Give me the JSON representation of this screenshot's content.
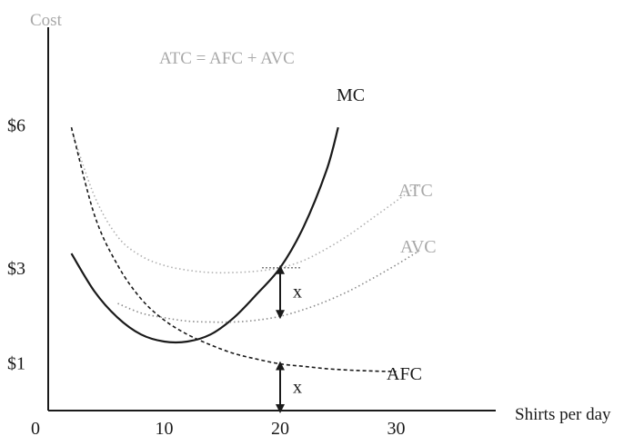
{
  "chart_data": {
    "type": "line",
    "title": "ATC = AFC + AVC",
    "ylabel": "Cost",
    "xlabel": "Shirts per day",
    "origin_label": "0",
    "x_ticks": [
      10,
      20,
      30
    ],
    "y_ticks": [
      {
        "value": 1,
        "label": "$1"
      },
      {
        "value": 3,
        "label": "$3"
      },
      {
        "value": 6,
        "label": "$6"
      }
    ],
    "xlim": [
      0,
      40
    ],
    "ylim": [
      0,
      7
    ],
    "series": [
      {
        "name": "MC",
        "style": "solid",
        "color": "#1a1a1a",
        "x": [
          2,
          4,
          6,
          8,
          10,
          12,
          14,
          16,
          18,
          20,
          22,
          24,
          25
        ],
        "y": [
          3.3,
          2.5,
          1.95,
          1.6,
          1.45,
          1.45,
          1.6,
          1.95,
          2.45,
          3.0,
          3.85,
          5.05,
          5.95
        ]
      },
      {
        "name": "ATC",
        "style": "dotted",
        "color": "#b0b0b0",
        "x": [
          2,
          4,
          6,
          8,
          10,
          12,
          14,
          16,
          18,
          20,
          22,
          24,
          26,
          28,
          30,
          32
        ],
        "y": [
          5.9,
          4.5,
          3.65,
          3.25,
          3.05,
          2.95,
          2.9,
          2.9,
          2.93,
          3.0,
          3.15,
          3.4,
          3.7,
          4.05,
          4.4,
          4.75
        ]
      },
      {
        "name": "AVC",
        "style": "dotted",
        "color": "#8a8a8a",
        "x": [
          6,
          8,
          10,
          12,
          14,
          16,
          18,
          20,
          22,
          24,
          26,
          28,
          30,
          32
        ],
        "y": [
          2.25,
          2.05,
          1.95,
          1.88,
          1.86,
          1.86,
          1.9,
          1.98,
          2.12,
          2.3,
          2.52,
          2.78,
          3.06,
          3.36
        ]
      },
      {
        "name": "AFC",
        "style": "dashed",
        "color": "#1a1a1a",
        "x": [
          2,
          4,
          6,
          8,
          10,
          12,
          14,
          16,
          18,
          20,
          22,
          24,
          26,
          28,
          30
        ],
        "y": [
          5.95,
          4.1,
          3.05,
          2.35,
          1.9,
          1.6,
          1.38,
          1.2,
          1.08,
          0.98,
          0.93,
          0.88,
          0.85,
          0.83,
          0.82
        ]
      }
    ],
    "annotations": [
      {
        "label": "x",
        "x": 20,
        "from": 0,
        "to": 0.98
      },
      {
        "label": "x",
        "x": 20,
        "from": 1.98,
        "to": 3.0
      }
    ],
    "labels": {
      "mc": "MC",
      "atc": "ATC",
      "avc": "AVC",
      "afc": "AFC"
    },
    "grid": false
  }
}
